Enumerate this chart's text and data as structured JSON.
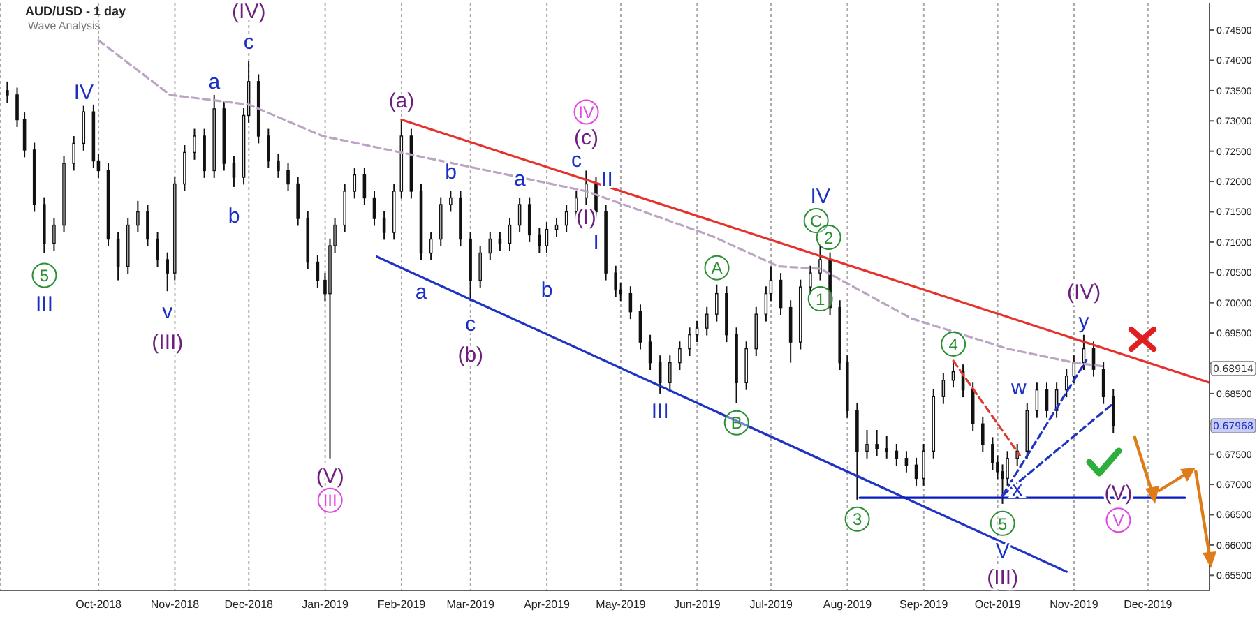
{
  "chart_data": {
    "type": "candlestick",
    "title": "AUD/USD - 1 day",
    "subtitle": "Wave Analysis",
    "x": [
      "2018-08-25",
      "2018-08-29",
      "2018-09-01",
      "2018-09-05",
      "2018-09-09",
      "2018-09-13",
      "2018-09-17",
      "2018-09-21",
      "2018-09-25",
      "2018-09-29",
      "2018-10-01",
      "2018-10-05",
      "2018-10-09",
      "2018-10-13",
      "2018-10-17",
      "2018-10-21",
      "2018-10-25",
      "2018-10-29",
      "2018-11-01",
      "2018-11-05",
      "2018-11-09",
      "2018-11-13",
      "2018-11-17",
      "2018-11-21",
      "2018-11-25",
      "2018-11-29",
      "2018-12-01",
      "2018-12-05",
      "2018-12-09",
      "2018-12-13",
      "2018-12-17",
      "2018-12-21",
      "2018-12-25",
      "2018-12-29",
      "2019-01-01",
      "2019-01-03",
      "2019-01-05",
      "2019-01-09",
      "2019-01-13",
      "2019-01-17",
      "2019-01-21",
      "2019-01-25",
      "2019-01-29",
      "2019-02-01",
      "2019-02-05",
      "2019-02-09",
      "2019-02-13",
      "2019-02-17",
      "2019-02-21",
      "2019-02-25",
      "2019-03-01",
      "2019-03-05",
      "2019-03-09",
      "2019-03-13",
      "2019-03-17",
      "2019-03-21",
      "2019-03-25",
      "2019-03-29",
      "2019-04-01",
      "2019-04-05",
      "2019-04-09",
      "2019-04-13",
      "2019-04-17",
      "2019-04-21",
      "2019-04-25",
      "2019-04-29",
      "2019-05-01",
      "2019-05-05",
      "2019-05-09",
      "2019-05-13",
      "2019-05-17",
      "2019-05-21",
      "2019-05-25",
      "2019-05-29",
      "2019-06-01",
      "2019-06-05",
      "2019-06-09",
      "2019-06-13",
      "2019-06-17",
      "2019-06-21",
      "2019-06-25",
      "2019-06-29",
      "2019-07-01",
      "2019-07-05",
      "2019-07-09",
      "2019-07-13",
      "2019-07-17",
      "2019-07-21",
      "2019-07-25",
      "2019-07-29",
      "2019-08-01",
      "2019-08-05",
      "2019-08-09",
      "2019-08-13",
      "2019-08-17",
      "2019-08-21",
      "2019-08-25",
      "2019-08-29",
      "2019-09-01",
      "2019-09-05",
      "2019-09-09",
      "2019-09-13",
      "2019-09-17",
      "2019-09-21",
      "2019-09-25",
      "2019-09-29",
      "2019-10-01",
      "2019-10-03",
      "2019-10-05",
      "2019-10-09",
      "2019-10-13",
      "2019-10-17",
      "2019-10-21",
      "2019-10-25",
      "2019-10-29",
      "2019-11-01",
      "2019-11-05",
      "2019-11-09",
      "2019-11-13",
      "2019-11-17"
    ],
    "ohlc": [
      [
        0.735,
        0.7365,
        0.733,
        0.7343
      ],
      [
        0.7343,
        0.7355,
        0.729,
        0.7302
      ],
      [
        0.7302,
        0.7314,
        0.724,
        0.7252
      ],
      [
        0.7252,
        0.7264,
        0.715,
        0.7162
      ],
      [
        0.7162,
        0.7174,
        0.7082,
        0.7098
      ],
      [
        0.7098,
        0.714,
        0.7086,
        0.7128
      ],
      [
        0.7128,
        0.7242,
        0.7116,
        0.723
      ],
      [
        0.723,
        0.7275,
        0.7218,
        0.7263
      ],
      [
        0.7263,
        0.7325,
        0.7251,
        0.7315
      ],
      [
        0.7315,
        0.7327,
        0.7222,
        0.7234
      ],
      [
        0.7234,
        0.7246,
        0.7206,
        0.7218
      ],
      [
        0.7218,
        0.723,
        0.7093,
        0.7105
      ],
      [
        0.7105,
        0.7117,
        0.7037,
        0.706
      ],
      [
        0.706,
        0.714,
        0.7048,
        0.7128
      ],
      [
        0.7128,
        0.7168,
        0.7116,
        0.715
      ],
      [
        0.715,
        0.7162,
        0.7093,
        0.7105
      ],
      [
        0.7105,
        0.7117,
        0.7059,
        0.7071
      ],
      [
        0.7071,
        0.7083,
        0.7019,
        0.7049
      ],
      [
        0.7049,
        0.7208,
        0.7037,
        0.7196
      ],
      [
        0.7196,
        0.726,
        0.7184,
        0.7248
      ],
      [
        0.7248,
        0.7287,
        0.7236,
        0.7275
      ],
      [
        0.7275,
        0.7287,
        0.7206,
        0.7218
      ],
      [
        0.7218,
        0.7343,
        0.7206,
        0.732
      ],
      [
        0.732,
        0.7332,
        0.7218,
        0.723
      ],
      [
        0.723,
        0.7242,
        0.7191,
        0.7207
      ],
      [
        0.7207,
        0.7321,
        0.7195,
        0.7309
      ],
      [
        0.7309,
        0.7399,
        0.7297,
        0.7365
      ],
      [
        0.7365,
        0.7377,
        0.7263,
        0.7275
      ],
      [
        0.7275,
        0.7287,
        0.7222,
        0.7234
      ],
      [
        0.7234,
        0.7246,
        0.7206,
        0.7218
      ],
      [
        0.7218,
        0.723,
        0.7184,
        0.7196
      ],
      [
        0.7196,
        0.7208,
        0.7127,
        0.7139
      ],
      [
        0.7139,
        0.7151,
        0.7055,
        0.7067
      ],
      [
        0.7067,
        0.7079,
        0.7025,
        0.7037
      ],
      [
        0.7037,
        0.7049,
        0.7003,
        0.7015
      ],
      [
        0.7015,
        0.7106,
        0.6743,
        0.7094
      ],
      [
        0.7094,
        0.714,
        0.7082,
        0.7128
      ],
      [
        0.7128,
        0.7196,
        0.7116,
        0.7184
      ],
      [
        0.7184,
        0.7223,
        0.7172,
        0.7211
      ],
      [
        0.7211,
        0.7223,
        0.7161,
        0.7173
      ],
      [
        0.7173,
        0.7185,
        0.7127,
        0.7139
      ],
      [
        0.7139,
        0.7151,
        0.7104,
        0.7116
      ],
      [
        0.7116,
        0.7196,
        0.7104,
        0.7184
      ],
      [
        0.7184,
        0.7302,
        0.7172,
        0.7275
      ],
      [
        0.7275,
        0.7287,
        0.7172,
        0.7184
      ],
      [
        0.7184,
        0.7196,
        0.707,
        0.7082
      ],
      [
        0.7082,
        0.7117,
        0.707,
        0.7105
      ],
      [
        0.7105,
        0.7174,
        0.7093,
        0.7162
      ],
      [
        0.7162,
        0.7185,
        0.715,
        0.7173
      ],
      [
        0.7173,
        0.7185,
        0.7093,
        0.7105
      ],
      [
        0.7105,
        0.7117,
        0.7003,
        0.7037
      ],
      [
        0.7037,
        0.7094,
        0.7025,
        0.7082
      ],
      [
        0.7082,
        0.7117,
        0.707,
        0.7105
      ],
      [
        0.7105,
        0.7117,
        0.7086,
        0.7098
      ],
      [
        0.7098,
        0.714,
        0.7086,
        0.7128
      ],
      [
        0.7128,
        0.7173,
        0.7116,
        0.7162
      ],
      [
        0.7162,
        0.7174,
        0.71,
        0.7112
      ],
      [
        0.7112,
        0.7124,
        0.7082,
        0.7094
      ],
      [
        0.7094,
        0.7133,
        0.7082,
        0.7121
      ],
      [
        0.7121,
        0.714,
        0.7109,
        0.7128
      ],
      [
        0.7128,
        0.7162,
        0.7116,
        0.715
      ],
      [
        0.715,
        0.7185,
        0.7138,
        0.7173
      ],
      [
        0.7173,
        0.7218,
        0.7161,
        0.7196
      ],
      [
        0.7196,
        0.7208,
        0.7138,
        0.715
      ],
      [
        0.715,
        0.7162,
        0.7037,
        0.7049
      ],
      [
        0.7049,
        0.7061,
        0.7009,
        0.7021
      ],
      [
        0.7021,
        0.7033,
        0.7003,
        0.7015
      ],
      [
        0.7015,
        0.7027,
        0.6973,
        0.6985
      ],
      [
        0.6985,
        0.6997,
        0.6923,
        0.6935
      ],
      [
        0.6935,
        0.6947,
        0.6889,
        0.6901
      ],
      [
        0.6901,
        0.6913,
        0.685,
        0.6868
      ],
      [
        0.6868,
        0.6913,
        0.6856,
        0.6901
      ],
      [
        0.6901,
        0.6936,
        0.6889,
        0.6924
      ],
      [
        0.6924,
        0.6959,
        0.6912,
        0.6947
      ],
      [
        0.6947,
        0.697,
        0.6935,
        0.6958
      ],
      [
        0.6958,
        0.6993,
        0.6946,
        0.6981
      ],
      [
        0.6981,
        0.703,
        0.6969,
        0.7015
      ],
      [
        0.7015,
        0.7027,
        0.6935,
        0.6947
      ],
      [
        0.6947,
        0.6959,
        0.6834,
        0.6868
      ],
      [
        0.6868,
        0.6936,
        0.6856,
        0.6924
      ],
      [
        0.6924,
        0.6993,
        0.6912,
        0.6981
      ],
      [
        0.6981,
        0.7027,
        0.6969,
        0.7015
      ],
      [
        0.7015,
        0.706,
        0.7003,
        0.7037
      ],
      [
        0.7037,
        0.7049,
        0.698,
        0.6992
      ],
      [
        0.6992,
        0.7004,
        0.6901,
        0.6935
      ],
      [
        0.6935,
        0.7038,
        0.6923,
        0.7026
      ],
      [
        0.7026,
        0.7061,
        0.7014,
        0.7049
      ],
      [
        0.7049,
        0.7094,
        0.7037,
        0.7071
      ],
      [
        0.7071,
        0.7083,
        0.698,
        0.6992
      ],
      [
        0.6992,
        0.7004,
        0.6889,
        0.6901
      ],
      [
        0.6901,
        0.6913,
        0.681,
        0.6822
      ],
      [
        0.6822,
        0.6834,
        0.6675,
        0.6755
      ],
      [
        0.6755,
        0.679,
        0.6743,
        0.6766
      ],
      [
        0.6766,
        0.679,
        0.6747,
        0.6759
      ],
      [
        0.6759,
        0.678,
        0.6743,
        0.6755
      ],
      [
        0.6755,
        0.6767,
        0.6731,
        0.6743
      ],
      [
        0.6743,
        0.6755,
        0.672,
        0.6732
      ],
      [
        0.6732,
        0.6744,
        0.6698,
        0.671
      ],
      [
        0.671,
        0.6767,
        0.6698,
        0.6755
      ],
      [
        0.6755,
        0.6857,
        0.6743,
        0.6845
      ],
      [
        0.6845,
        0.6884,
        0.6833,
        0.6872
      ],
      [
        0.6872,
        0.6904,
        0.686,
        0.6886
      ],
      [
        0.6886,
        0.6898,
        0.6844,
        0.6856
      ],
      [
        0.6856,
        0.6868,
        0.6788,
        0.68
      ],
      [
        0.68,
        0.6812,
        0.6754,
        0.6766
      ],
      [
        0.6766,
        0.6778,
        0.6724,
        0.6736
      ],
      [
        0.6736,
        0.6748,
        0.6709,
        0.6721
      ],
      [
        0.6721,
        0.6733,
        0.6668,
        0.671
      ],
      [
        0.671,
        0.6755,
        0.6698,
        0.6743
      ],
      [
        0.6743,
        0.6767,
        0.6731,
        0.6755
      ],
      [
        0.6755,
        0.6834,
        0.6743,
        0.6822
      ],
      [
        0.6822,
        0.6868,
        0.681,
        0.6856
      ],
      [
        0.6856,
        0.6868,
        0.681,
        0.6822
      ],
      [
        0.6822,
        0.6868,
        0.681,
        0.6856
      ],
      [
        0.6856,
        0.6891,
        0.6844,
        0.6879
      ],
      [
        0.6879,
        0.6913,
        0.6867,
        0.6901
      ],
      [
        0.6901,
        0.6947,
        0.6889,
        0.6924
      ],
      [
        0.6924,
        0.6936,
        0.6878,
        0.689
      ],
      [
        0.689,
        0.6902,
        0.6833,
        0.6845
      ],
      [
        0.6845,
        0.6857,
        0.6785,
        0.6797
      ]
    ],
    "series": [
      {
        "type": "line",
        "color": "#e5322b",
        "line_style": "solid",
        "x": [
          "2019-02-01",
          "2019-12-26"
        ],
        "values": [
          0.7302,
          0.6868
        ]
      },
      {
        "type": "line",
        "color": "#1f33c4",
        "line_style": "solid",
        "x": [
          "2019-01-22",
          "2019-10-29"
        ],
        "values": [
          0.7076,
          0.6556
        ]
      },
      {
        "type": "line",
        "color": "#0a1cbf",
        "line_style": "solid",
        "x": [
          "2019-08-06",
          "2019-12-16"
        ],
        "values": [
          0.6678,
          0.6678
        ]
      },
      {
        "type": "line",
        "color": "#1f33c4",
        "line_style": "dashed",
        "x": [
          "2019-10-03",
          "2019-11-06"
        ],
        "values": [
          0.6682,
          0.6905
        ]
      },
      {
        "type": "line",
        "color": "#1f33c4",
        "line_style": "dashed",
        "x": [
          "2019-10-03",
          "2019-11-17"
        ],
        "values": [
          0.6682,
          0.6834
        ]
      },
      {
        "type": "line",
        "color": "#e03a30",
        "line_style": "dashed",
        "x": [
          "2019-09-13",
          "2019-10-10"
        ],
        "values": [
          0.6904,
          0.6748
        ]
      },
      {
        "type": "line",
        "color": "#bca4c4",
        "line_style": "dashed",
        "x": [
          "2018-10-01",
          "2018-10-30",
          "2018-12-01",
          "2018-12-31",
          "2019-02-09",
          "2019-04-17",
          "2019-06-07",
          "2019-07-04",
          "2019-07-21",
          "2019-08-27",
          "2019-10-05",
          "2019-11-01",
          "2019-11-13"
        ],
        "values": [
          0.7433,
          0.7343,
          0.7327,
          0.7275,
          0.7241,
          0.7184,
          0.711,
          0.706,
          0.7056,
          0.6974,
          0.6924,
          0.6901,
          0.6895
        ]
      }
    ],
    "xlim": [
      "2018-08-22",
      "2019-12-26"
    ],
    "xticks": [
      {
        "value": "2018-10-01",
        "label": "Oct-2018"
      },
      {
        "value": "2018-11-01",
        "label": "Nov-2018"
      },
      {
        "value": "2018-12-01",
        "label": "Dec-2018"
      },
      {
        "value": "2019-01-01",
        "label": "Jan-2019"
      },
      {
        "value": "2019-02-01",
        "label": "Feb-2019"
      },
      {
        "value": "2019-03-01",
        "label": "Mar-2019"
      },
      {
        "value": "2019-04-01",
        "label": "Apr-2019"
      },
      {
        "value": "2019-05-01",
        "label": "May-2019"
      },
      {
        "value": "2019-06-01",
        "label": "Jun-2019"
      },
      {
        "value": "2019-07-01",
        "label": "Jul-2019"
      },
      {
        "value": "2019-08-01",
        "label": "Aug-2019"
      },
      {
        "value": "2019-09-01",
        "label": "Sep-2019"
      },
      {
        "value": "2019-10-01",
        "label": "Oct-2019"
      },
      {
        "value": "2019-11-01",
        "label": "Nov-2019"
      },
      {
        "value": "2019-12-01",
        "label": "Dec-2019"
      }
    ],
    "ylim": [
      0.6525,
      0.7495
    ],
    "yticks": [
      {
        "value": 0.655,
        "label": "0.65500"
      },
      {
        "value": 0.66,
        "label": "0.66000"
      },
      {
        "value": 0.665,
        "label": "0.66500"
      },
      {
        "value": 0.67,
        "label": "0.67000"
      },
      {
        "value": 0.675,
        "label": "0.67500"
      },
      {
        "value": 0.68,
        "label": null
      },
      {
        "value": 0.685,
        "label": "0.68500"
      },
      {
        "value": 0.69,
        "label": null
      },
      {
        "value": 0.695,
        "label": "0.69500"
      },
      {
        "value": 0.7,
        "label": "0.70000"
      },
      {
        "value": 0.705,
        "label": "0.70500"
      },
      {
        "value": 0.71,
        "label": "0.71000"
      },
      {
        "value": 0.715,
        "label": "0.71500"
      },
      {
        "value": 0.72,
        "label": "0.72000"
      },
      {
        "value": 0.725,
        "label": "0.72500"
      },
      {
        "value": 0.73,
        "label": "0.73000"
      },
      {
        "value": 0.735,
        "label": "0.73500"
      },
      {
        "value": 0.74,
        "label": "0.74000"
      },
      {
        "value": 0.745,
        "label": "0.74500"
      }
    ],
    "grid": "x",
    "annotations": [
      {
        "text": "5",
        "x": "2018-09-09",
        "y": 0.7082
      },
      {
        "text": "III",
        "x": "2018-09-09",
        "y": 0.7082
      },
      {
        "text": "IV",
        "x": "2018-09-25",
        "y": 0.7325
      },
      {
        "text": "v",
        "x": "2018-10-29",
        "y": 0.7019
      },
      {
        "text": "(III)",
        "x": "2018-10-29",
        "y": 0.7019
      },
      {
        "text": "a",
        "x": "2018-11-17",
        "y": 0.7343
      },
      {
        "text": "b",
        "x": "2018-11-25",
        "y": 0.7191
      },
      {
        "text": "c",
        "x": "2018-12-01",
        "y": 0.7399
      },
      {
        "text": "(IV)",
        "x": "2018-12-01",
        "y": 0.7399
      },
      {
        "text": "(a)",
        "x": "2019-02-01",
        "y": 0.7302
      },
      {
        "text": "(V)",
        "x": "2019-01-03",
        "y": 0.6743
      },
      {
        "text": "III",
        "x": "2019-01-03",
        "y": 0.6743
      },
      {
        "text": "b",
        "x": "2019-02-21",
        "y": 0.7185
      },
      {
        "text": "a",
        "x": "2019-03-21",
        "y": 0.7173
      },
      {
        "text": "a",
        "x": "2019-02-09",
        "y": 0.707
      },
      {
        "text": "c",
        "x": "2019-03-01",
        "y": 0.7003
      },
      {
        "text": "(b)",
        "x": "2019-03-01",
        "y": 0.7003
      },
      {
        "text": "b",
        "x": "2019-04-01",
        "y": 0.7082
      },
      {
        "text": "IV",
        "x": "2019-04-17",
        "y": 0.7218
      },
      {
        "text": "(c)",
        "x": "2019-04-17",
        "y": 0.7218
      },
      {
        "text": "c",
        "x": "2019-04-17",
        "y": 0.7218
      },
      {
        "text": "II",
        "x": "2019-04-17",
        "y": 0.7218
      },
      {
        "text": "(I)",
        "x": "2019-04-17",
        "y": 0.7161
      },
      {
        "text": "I",
        "x": "2019-04-21",
        "y": 0.7138
      },
      {
        "text": "III",
        "x": "2019-05-17",
        "y": 0.685
      },
      {
        "text": "A",
        "x": "2019-06-09",
        "y": 0.703
      },
      {
        "text": "B",
        "x": "2019-06-17",
        "y": 0.6834
      },
      {
        "text": "IV",
        "x": "2019-07-21",
        "y": 0.7094
      },
      {
        "text": "C",
        "x": "2019-07-21",
        "y": 0.7094
      },
      {
        "text": "2",
        "x": "2019-07-21",
        "y": 0.7094
      },
      {
        "text": "1",
        "x": "2019-07-21",
        "y": 0.7094
      },
      {
        "text": "4",
        "x": "2019-09-13",
        "y": 0.6904
      },
      {
        "text": "3",
        "x": "2019-08-05",
        "y": 0.6675
      },
      {
        "text": "5",
        "x": "2019-10-03",
        "y": 0.6668
      },
      {
        "text": "V",
        "x": "2019-10-03",
        "y": 0.6668
      },
      {
        "text": "(III)",
        "x": "2019-10-03",
        "y": 0.6668
      },
      {
        "text": "w",
        "x": "2019-10-13",
        "y": 0.6834
      },
      {
        "text": "x",
        "x": "2019-10-09",
        "y": 0.6731
      },
      {
        "text": "y",
        "x": "2019-11-05",
        "y": 0.6947
      },
      {
        "text": "(IV)",
        "x": "2019-11-05",
        "y": 0.6947
      },
      {
        "text": "(V)",
        "x": "2019-11-19",
        "y": 0.6687
      },
      {
        "text": "V",
        "x": "2019-11-19",
        "y": 0.6641
      },
      {
        "text": "0.68914",
        "y": 0.68914
      },
      {
        "text": "0.67968",
        "y": 0.67968
      }
    ]
  }
}
